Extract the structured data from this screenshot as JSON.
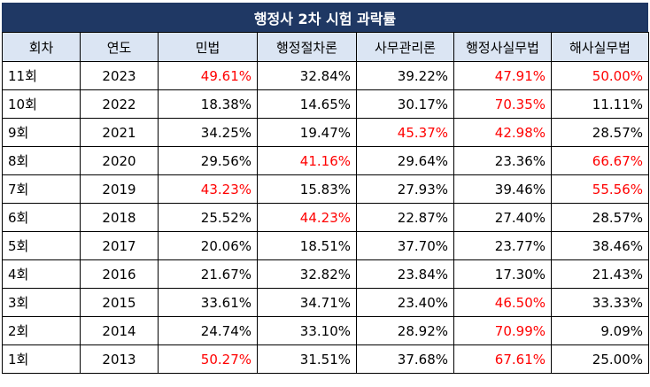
{
  "title": "행정사 2차 시험 과락률",
  "columns": [
    "회차",
    "연도",
    "민법",
    "행정절차론",
    "사무관리론",
    "행정사실무법",
    "해사실무법"
  ],
  "highlight_color": "#ff0000",
  "header_bg": "#dbe5f3",
  "title_bg": "#1f3864",
  "rows": [
    {
      "round": "11회",
      "year": "2023",
      "values": [
        "49.61%",
        "32.84%",
        "39.22%",
        "47.91%",
        "50.00%"
      ],
      "highlight": [
        true,
        false,
        false,
        true,
        true
      ]
    },
    {
      "round": "10회",
      "year": "2022",
      "values": [
        "18.38%",
        "14.65%",
        "30.17%",
        "70.35%",
        "11.11%"
      ],
      "highlight": [
        false,
        false,
        false,
        true,
        false
      ]
    },
    {
      "round": "9회",
      "year": "2021",
      "values": [
        "34.25%",
        "19.47%",
        "45.37%",
        "42.98%",
        "28.57%"
      ],
      "highlight": [
        false,
        false,
        true,
        true,
        false
      ]
    },
    {
      "round": "8회",
      "year": "2020",
      "values": [
        "29.56%",
        "41.16%",
        "29.64%",
        "23.36%",
        "66.67%"
      ],
      "highlight": [
        false,
        true,
        false,
        false,
        true
      ]
    },
    {
      "round": "7회",
      "year": "2019",
      "values": [
        "43.23%",
        "15.83%",
        "27.93%",
        "39.46%",
        "55.56%"
      ],
      "highlight": [
        true,
        false,
        false,
        false,
        true
      ]
    },
    {
      "round": "6회",
      "year": "2018",
      "values": [
        "25.52%",
        "44.23%",
        "22.87%",
        "27.40%",
        "28.57%"
      ],
      "highlight": [
        false,
        true,
        false,
        false,
        false
      ]
    },
    {
      "round": "5회",
      "year": "2017",
      "values": [
        "20.06%",
        "18.51%",
        "37.70%",
        "23.77%",
        "38.46%"
      ],
      "highlight": [
        false,
        false,
        false,
        false,
        false
      ]
    },
    {
      "round": "4회",
      "year": "2016",
      "values": [
        "21.67%",
        "32.82%",
        "23.84%",
        "17.30%",
        "21.43%"
      ],
      "highlight": [
        false,
        false,
        false,
        false,
        false
      ]
    },
    {
      "round": "3회",
      "year": "2015",
      "values": [
        "33.61%",
        "34.71%",
        "23.40%",
        "46.50%",
        "33.33%"
      ],
      "highlight": [
        false,
        false,
        false,
        true,
        false
      ]
    },
    {
      "round": "2회",
      "year": "2014",
      "values": [
        "24.74%",
        "33.10%",
        "28.92%",
        "70.99%",
        "9.09%"
      ],
      "highlight": [
        false,
        false,
        false,
        true,
        false
      ]
    },
    {
      "round": "1회",
      "year": "2013",
      "values": [
        "50.27%",
        "31.51%",
        "37.68%",
        "67.61%",
        "25.00%"
      ],
      "highlight": [
        true,
        false,
        false,
        true,
        false
      ]
    }
  ]
}
